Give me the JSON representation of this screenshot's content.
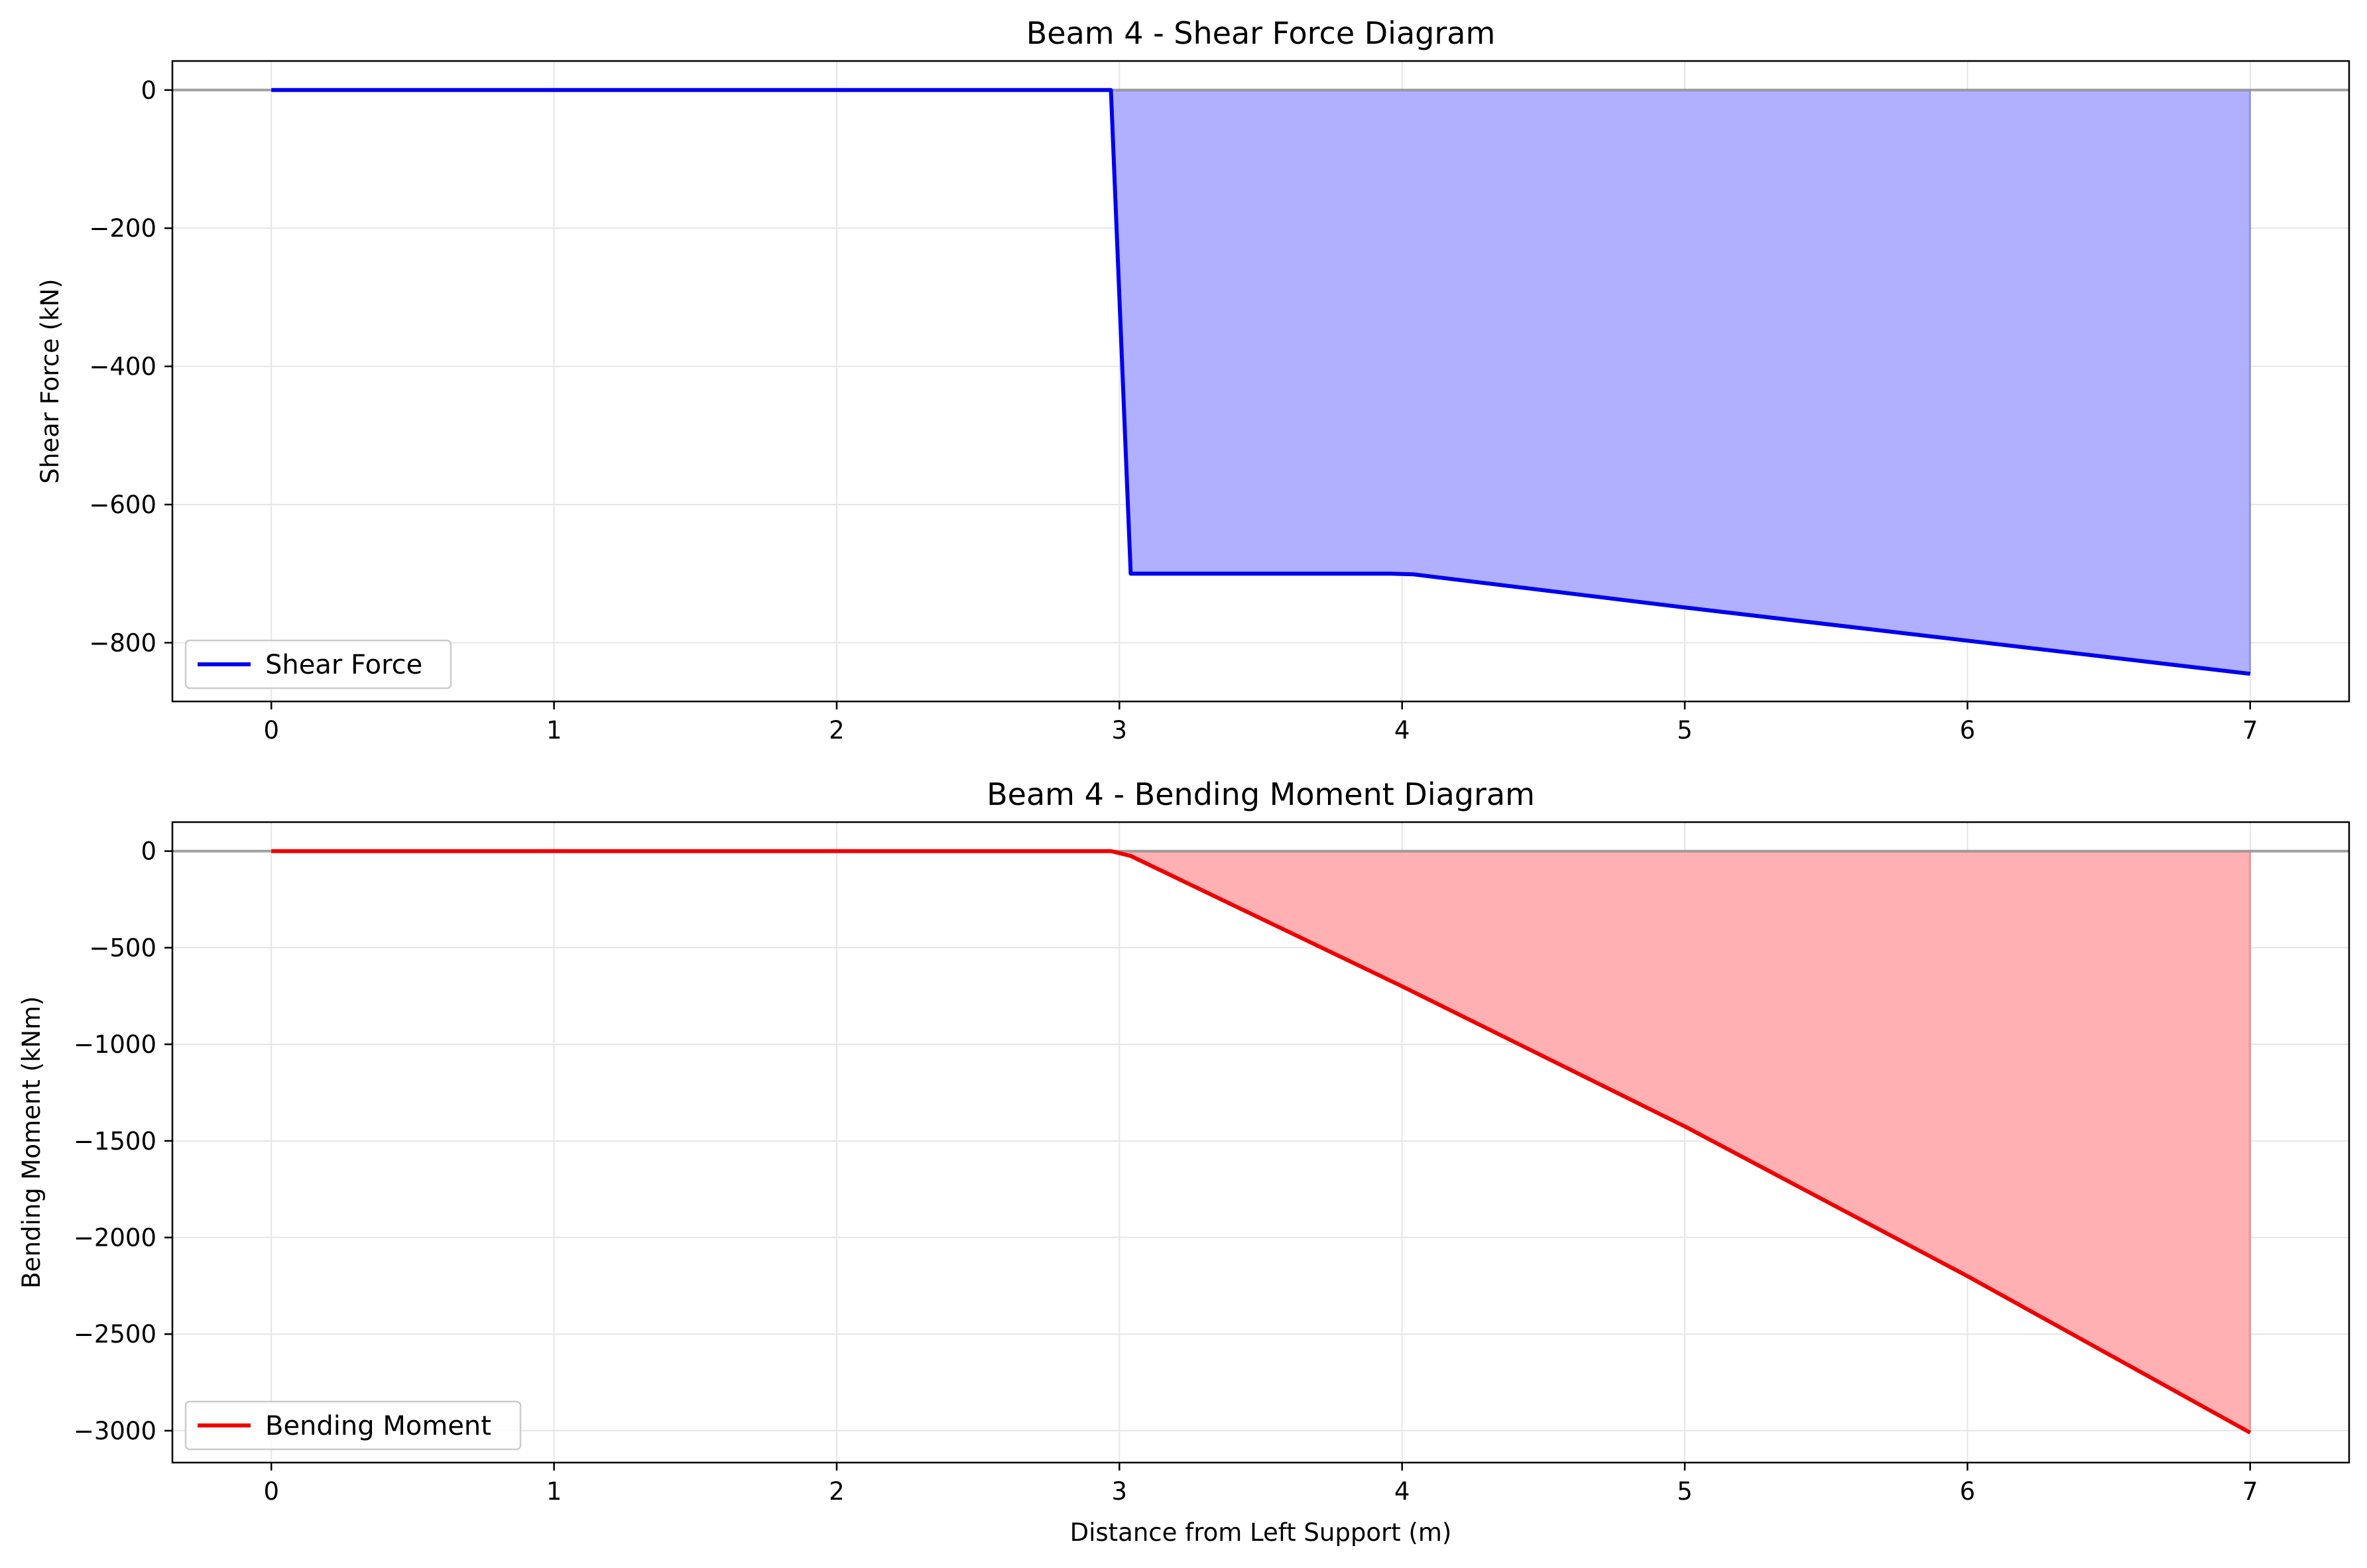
{
  "colors": {
    "shear_line": "#0000ee",
    "shear_fill": "#b0b0ff",
    "moment_line": "#ee0000",
    "moment_fill": "#ffb0b3",
    "zero_line": "#8c8c8c",
    "grid": "#e6e6e6"
  },
  "chart_data": [
    {
      "type": "area",
      "title": "Beam 4 - Shear Force Diagram",
      "xlabel": "",
      "ylabel": "Shear Force (kN)",
      "xlim": [
        -0.35,
        7.35
      ],
      "ylim": [
        -885,
        42
      ],
      "xticks": [
        0,
        1,
        2,
        3,
        4,
        5,
        6,
        7
      ],
      "yticks": [
        0,
        -200,
        -400,
        -600,
        -800
      ],
      "grid": true,
      "legend_position": "lower-left",
      "series": [
        {
          "name": "Shear Force",
          "x": [
            0,
            2.97,
            3.04,
            3.96,
            4.04,
            5,
            6,
            7
          ],
          "y": [
            0,
            0,
            -700,
            -700,
            -701,
            -749,
            -797,
            -845
          ]
        }
      ]
    },
    {
      "type": "area",
      "title": "Beam 4 - Bending Moment Diagram",
      "xlabel": "Distance from Left Support (m)",
      "ylabel": "Bending Moment (kNm)",
      "xlim": [
        -0.35,
        7.35
      ],
      "ylim": [
        -3165,
        150
      ],
      "xticks": [
        0,
        1,
        2,
        3,
        4,
        5,
        6,
        7
      ],
      "yticks": [
        0,
        -500,
        -1000,
        -1500,
        -2000,
        -2500,
        -3000
      ],
      "grid": true,
      "legend_position": "lower-left",
      "series": [
        {
          "name": "Bending Moment",
          "x": [
            0,
            2.97,
            3.04,
            4,
            5,
            6,
            7
          ],
          "y": [
            0,
            0,
            -25,
            -700,
            -1425,
            -2200,
            -3010
          ]
        }
      ]
    }
  ]
}
